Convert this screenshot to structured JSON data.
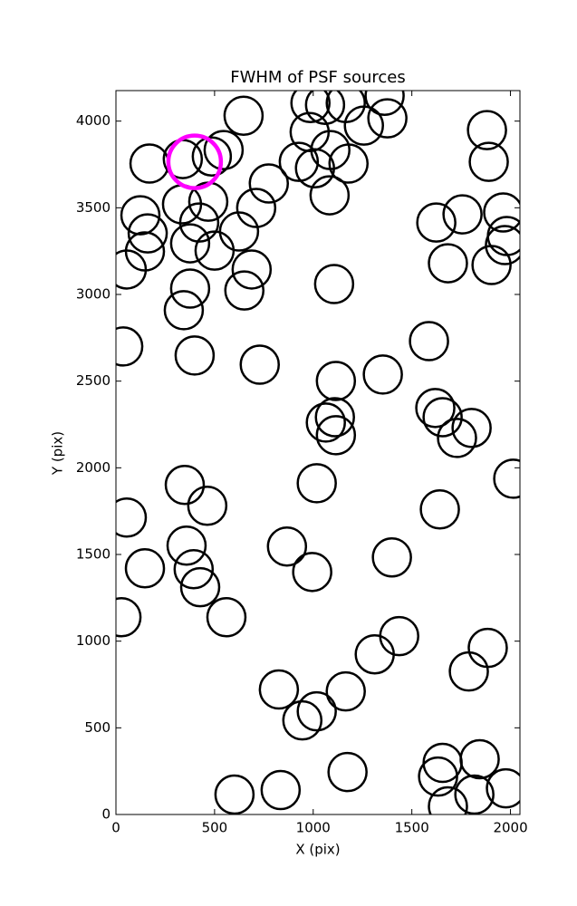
{
  "chart_data": {
    "type": "scatter",
    "title": "FWHM of PSF sources",
    "x_label": "X (pix)",
    "y_label": "Y (pix)",
    "xlim": [
      0,
      2048
    ],
    "ylim": [
      0,
      4176
    ],
    "xticks": [
      0,
      500,
      1000,
      1500,
      2000
    ],
    "yticks": [
      0,
      500,
      1000,
      1500,
      2000,
      2500,
      3000,
      3500,
      4000
    ],
    "series": [
      {
        "color": "#000000",
        "x": [
          647,
          986,
          1060,
          1165,
          1362,
          1376,
          1257,
          982,
          1087,
          1179,
          927,
          1009,
          1083,
          775,
          711,
          624,
          688,
          651,
          1106,
          546,
          486,
          339,
          170,
          335,
          468,
          422,
          376,
          500,
          124,
          161,
          147,
          55,
          376,
          344,
          399,
          37,
          729,
          1881,
          1890,
          1624,
          1757,
          1963,
          1982,
          1972,
          1683,
          1904,
          1587,
          1115,
          1353,
          1110,
          1064,
          1115,
          1619,
          1656,
          1729,
          1803,
          2014,
          1018,
          349,
          463,
          55,
          1642,
          867,
          1399,
          995,
          358,
          394,
          147,
          427,
          560,
          28,
          1436,
          1312,
          1885,
          1789,
          826,
          1165,
          1018,
          945,
          1656,
          1844,
          1977,
          1817,
          1633,
          1683,
          1174,
          601,
          835
        ],
        "values": [
          4031,
          4104,
          4094,
          4104,
          4146,
          4016,
          3974,
          3937,
          3833,
          3755,
          3765,
          3728,
          3572,
          3640,
          3499,
          3363,
          3144,
          3023,
          3060,
          3833,
          3796,
          3781,
          3755,
          3520,
          3535,
          3415,
          3295,
          3253,
          3457,
          3352,
          3248,
          3144,
          3034,
          2909,
          2648,
          2700,
          2595,
          3948,
          3765,
          3415,
          3462,
          3473,
          3337,
          3285,
          3180,
          3170,
          2731,
          2501,
          2538,
          2292,
          2261,
          2188,
          2345,
          2292,
          2172,
          2230,
          1937,
          1911,
          1901,
          1781,
          1713,
          1760,
          1546,
          1483,
          1399,
          1551,
          1415,
          1420,
          1311,
          1138,
          1138,
          1029,
          924,
          961,
          825,
          721,
          710,
          595,
          543,
          298,
          319,
          151,
          115,
          219,
          47,
          245,
          115,
          141
        ]
      },
      {
        "color": "#ff00ff",
        "x": [
          399
        ],
        "values": [
          3765
        ]
      }
    ]
  }
}
